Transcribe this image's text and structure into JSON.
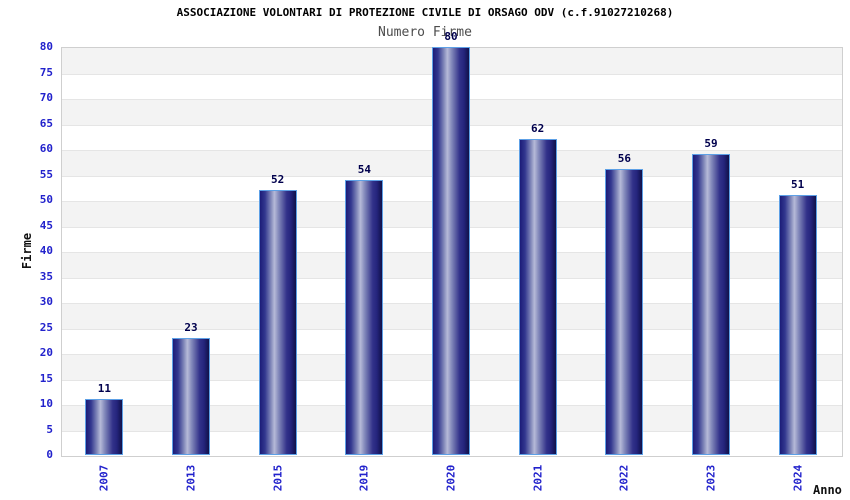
{
  "chart_data": {
    "type": "bar",
    "title": "ASSOCIAZIONE VOLONTARI DI PROTEZIONE CIVILE DI ORSAGO ODV (c.f.91027210268)",
    "subtitle": "Numero Firme",
    "xlabel": "Anno",
    "ylabel": "Firme",
    "categories": [
      "2007",
      "2013",
      "2015",
      "2019",
      "2020",
      "2021",
      "2022",
      "2023",
      "2024"
    ],
    "values": [
      11,
      23,
      52,
      54,
      80,
      62,
      56,
      59,
      51
    ],
    "ylim": [
      0,
      80
    ],
    "ytick_step": 5,
    "grid": "horizontal-bands-alternating",
    "legend": "none",
    "colors": {
      "bar_border": "#5da0e6",
      "bar_dark": "#1c1c78",
      "bar_highlight": "#b6bad8",
      "bar_darkest": "#111148",
      "tick_label": "#2222cc",
      "value_label": "#00004d",
      "band_gray": "#f3f3f3",
      "band_line": "#e5e5e5",
      "plot_border": "#cfcfcf",
      "title": "#000000",
      "subtitle": "#4d4d4d",
      "axis_title": "#111111"
    }
  }
}
